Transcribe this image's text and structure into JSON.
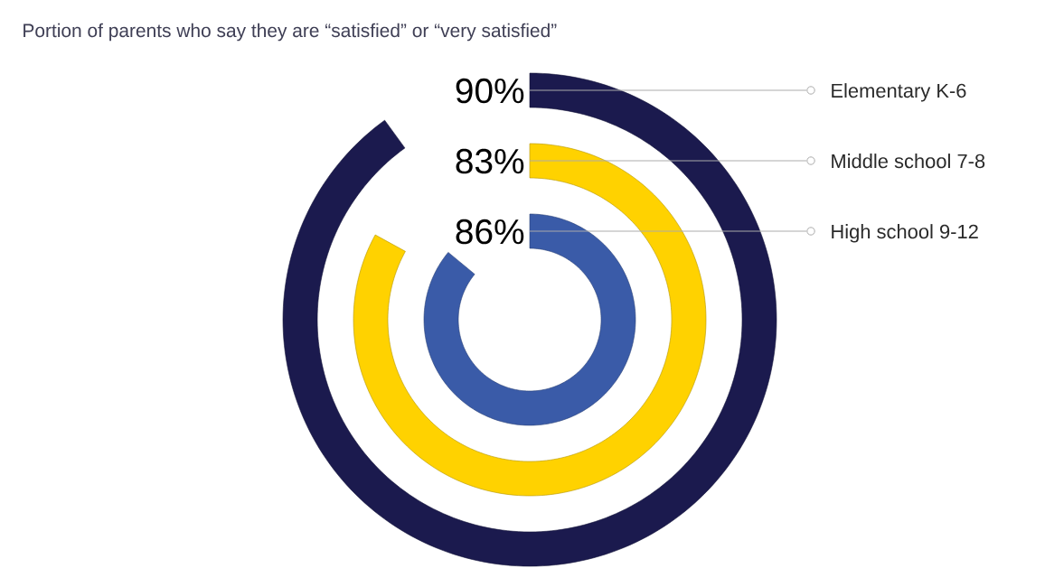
{
  "chart_data": {
    "type": "other",
    "title": "Portion of parents who say they are “satisfied” or “very satisfied”",
    "categories": [
      "Elementary K-6",
      "Middle school 7-8",
      "High school 9-12"
    ],
    "values": [
      90,
      83,
      86
    ],
    "value_labels": [
      "90%",
      "83%",
      "86%"
    ],
    "colors": [
      "#1b1a4e",
      "#ffd200",
      "#3a5ba8"
    ]
  }
}
